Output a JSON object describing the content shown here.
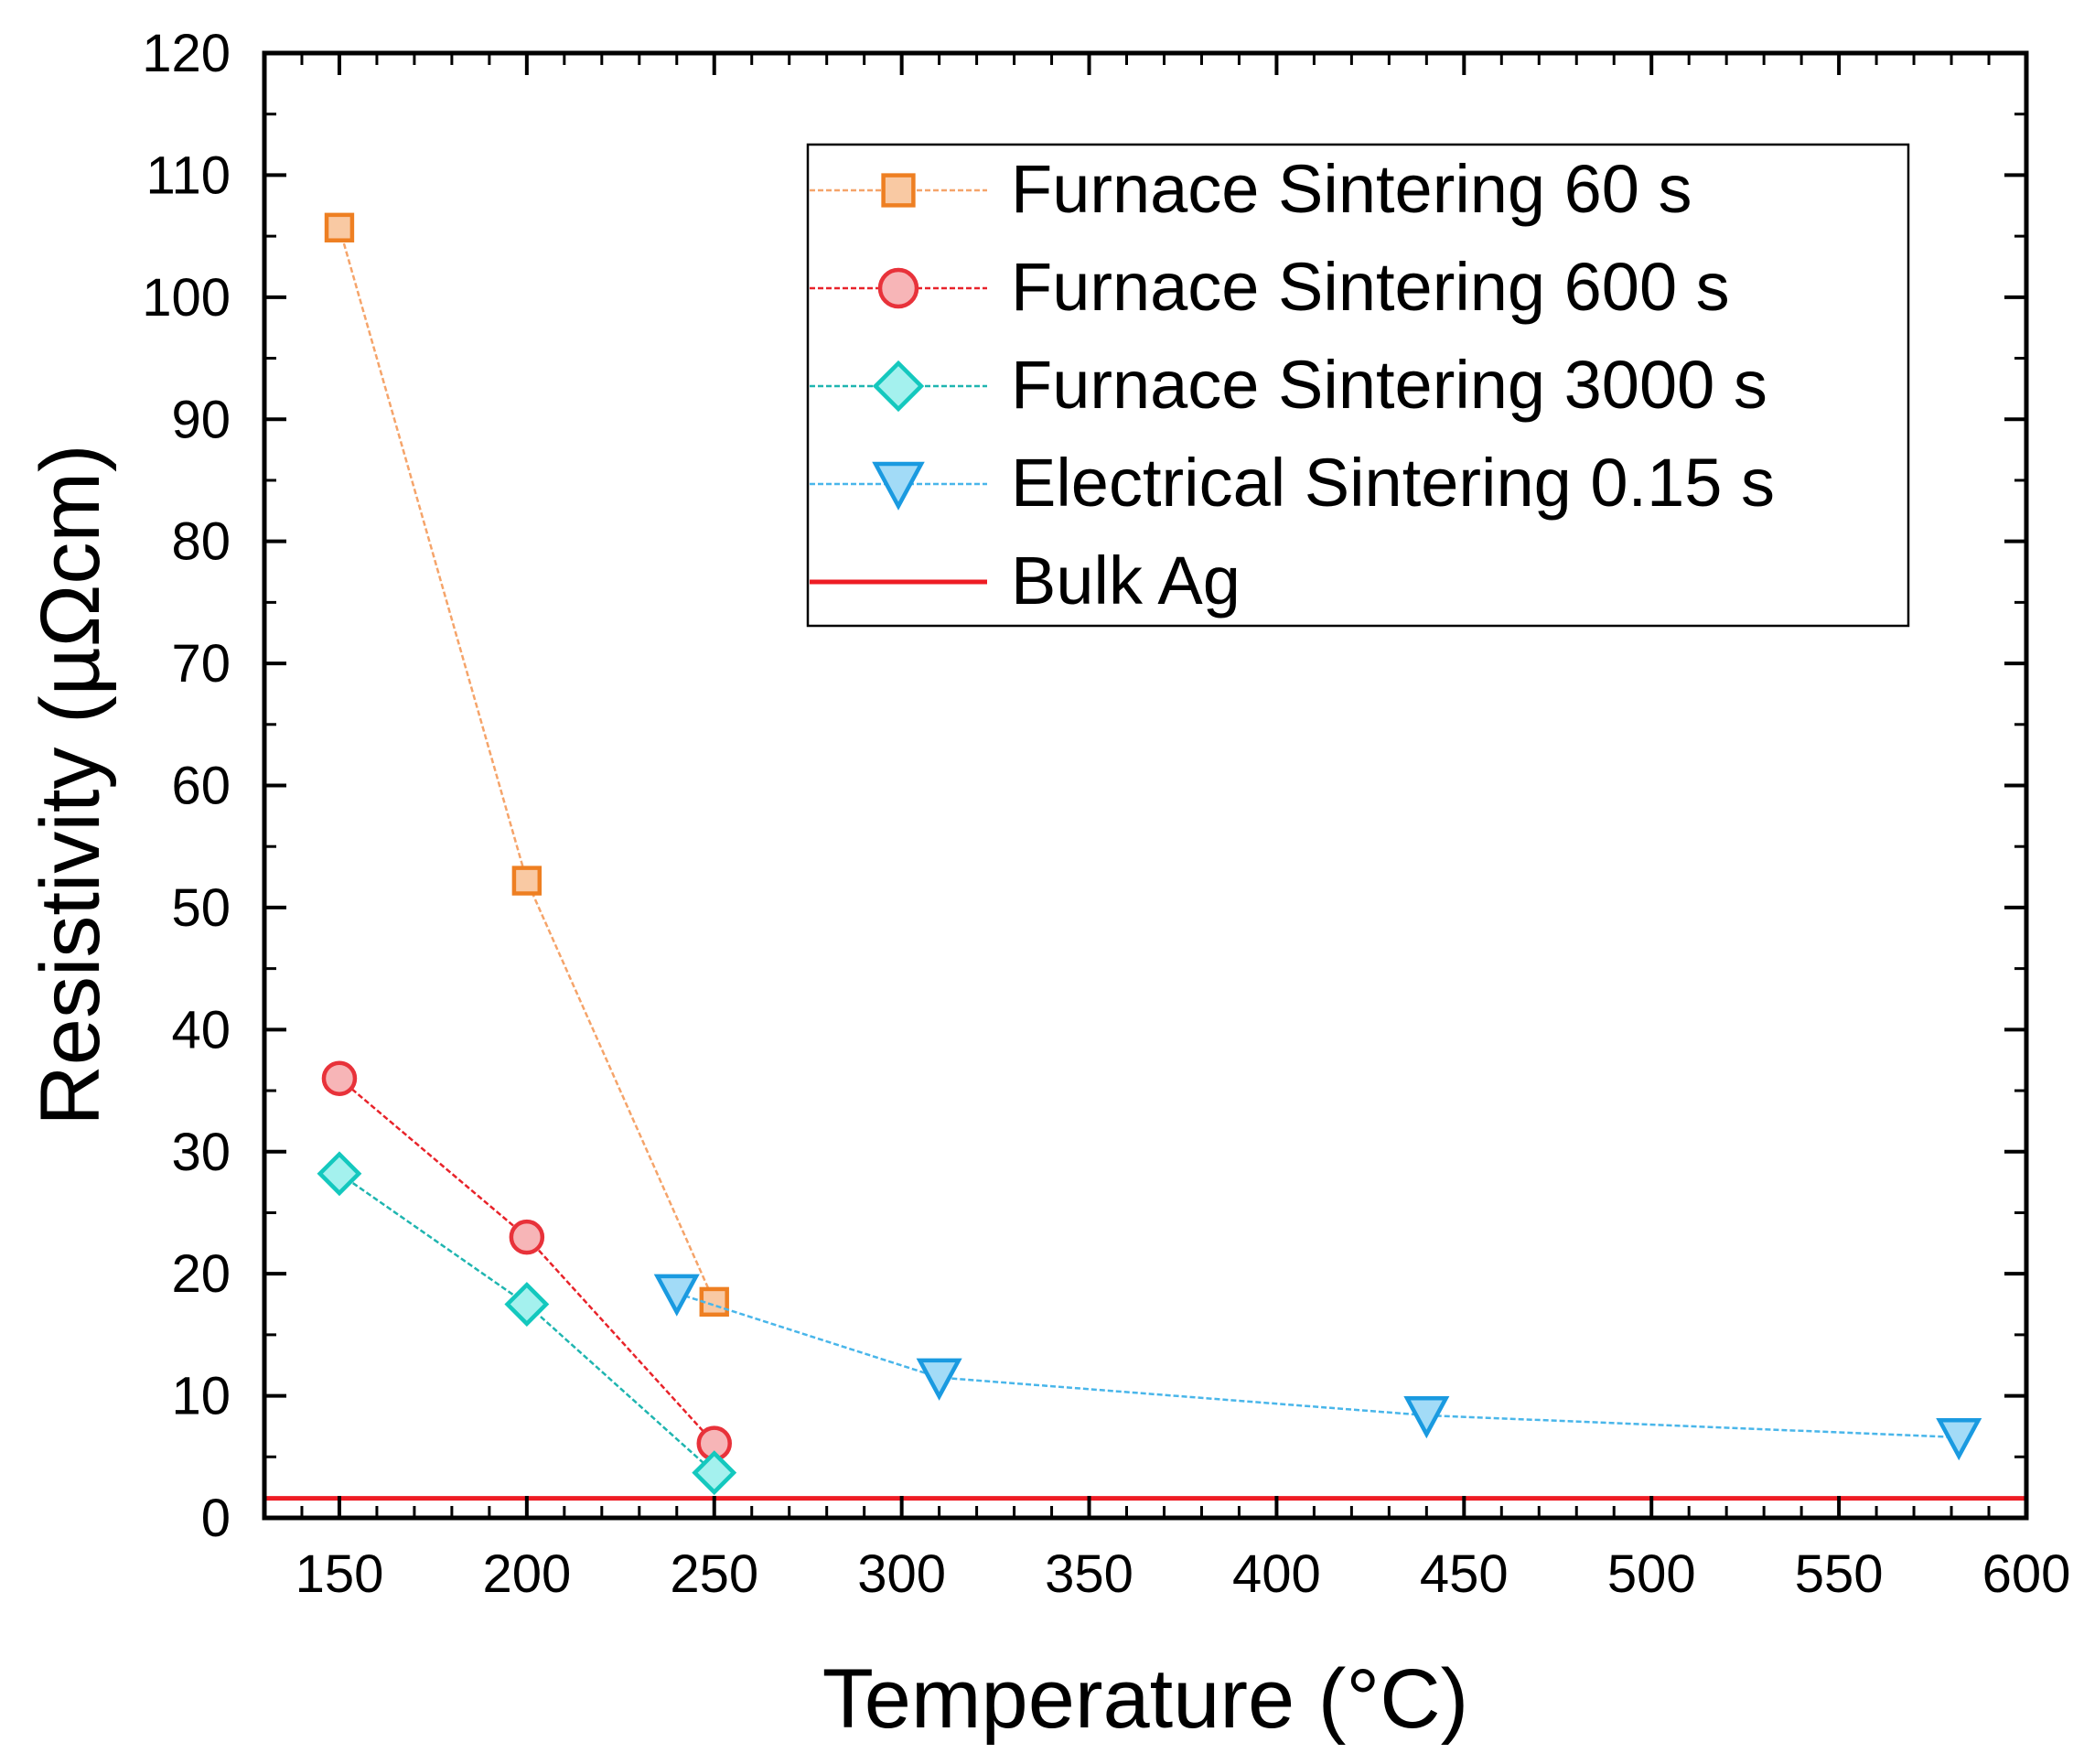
{
  "chart_data": {
    "type": "line",
    "title": "",
    "xlabel": "Temperature (°C)",
    "ylabel": "Resistivity (µΩcm)",
    "xlim": [
      130,
      600
    ],
    "ylim": [
      0,
      120
    ],
    "xticks": [
      150,
      200,
      250,
      300,
      350,
      400,
      450,
      500,
      550,
      600
    ],
    "yticks": [
      0,
      10,
      20,
      30,
      40,
      50,
      60,
      70,
      80,
      90,
      100,
      110,
      120
    ],
    "legend_position": "top-right",
    "grid": false,
    "series": [
      {
        "name": "Furnace Sintering 60 s",
        "marker": "square",
        "line_color": "#f5a46a",
        "marker_fill": "#f9c9a3",
        "marker_stroke": "#ee7f22",
        "x": [
          150,
          200,
          250
        ],
        "y": [
          105.7,
          52.2,
          17.7
        ]
      },
      {
        "name": "Furnace Sintering 600 s",
        "marker": "circle",
        "line_color": "#e8232a",
        "marker_fill": "#f7b5b7",
        "marker_stroke": "#e8323a",
        "x": [
          150,
          200,
          250
        ],
        "y": [
          36.0,
          23.0,
          6.1
        ]
      },
      {
        "name": "Furnace Sintering 3000 s",
        "marker": "diamond",
        "line_color": "#1fb5b0",
        "marker_fill": "#a4f1ee",
        "marker_stroke": "#14c8be",
        "x": [
          150,
          200,
          250
        ],
        "y": [
          28.2,
          17.5,
          3.7
        ]
      },
      {
        "name": "Electrical Sintering 0.15 s",
        "marker": "triangle-down",
        "line_color": "#49b6ea",
        "marker_fill": "#a2dbf7",
        "marker_stroke": "#1a9ae0",
        "x": [
          240,
          310,
          440,
          582
        ],
        "y": [
          18.4,
          11.5,
          8.4,
          6.6
        ]
      },
      {
        "name": "Bulk Ag",
        "marker": "none",
        "line_color": "#ee1c24",
        "type": "hline",
        "y_value": 1.6
      }
    ]
  }
}
